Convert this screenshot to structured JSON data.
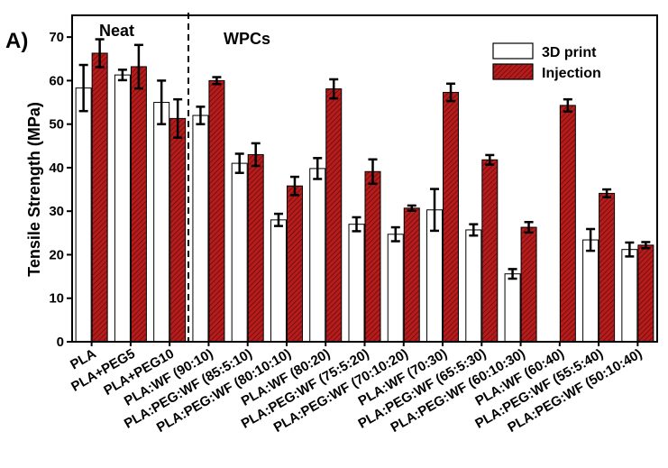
{
  "chart_data": {
    "type": "bar",
    "panel_label": "A)",
    "ylabel": "Tensile Strength (MPa)",
    "xlabel": "",
    "ylim": [
      0,
      75
    ],
    "yticks": [
      0,
      10,
      20,
      30,
      40,
      50,
      60,
      70
    ],
    "group_annotations": [
      "Neat",
      "WPCs"
    ],
    "categories": [
      "PLA",
      "PLA+PEG5",
      "PLA+PEG10",
      "PLA:WF (90:10)",
      "PLA:PEG:WF (85:5:10)",
      "PLA:PEG:WF (80:10:10)",
      "PLA:WF (80:20)",
      "PLA:PEG:WF (75:5:20)",
      "PLA:PEG:WF (70:10:20)",
      "PLA:WF (70:30)",
      "PLA:PEG:WF (65:5:30)",
      "PLA:PEG:WF (60:10:30)",
      "PLA:WF (60:40)",
      "PLA:PEG:WF (55:5:40)",
      "PLA:PEG:WF (50:10:40)"
    ],
    "series": [
      {
        "name": "3D print",
        "color": "#ffffff",
        "values": [
          58.3,
          61.3,
          55.0,
          52.0,
          41.0,
          28.0,
          39.8,
          27.0,
          24.7,
          30.3,
          25.7,
          15.6,
          null,
          23.4,
          21.2
        ],
        "errors": [
          5.3,
          1.2,
          5.0,
          2.0,
          2.2,
          1.4,
          2.4,
          1.6,
          1.6,
          4.8,
          1.3,
          1.1,
          null,
          2.5,
          1.6
        ]
      },
      {
        "name": "Injection",
        "color": "#b71c1c",
        "values": [
          66.3,
          63.2,
          51.3,
          60.0,
          43.0,
          35.8,
          58.1,
          39.1,
          30.7,
          57.3,
          41.8,
          26.3,
          54.3,
          34.1,
          22.2
        ]
      }
    ],
    "injection_errors": [
      3.2,
      5.0,
      4.4,
      0.8,
      2.6,
      2.1,
      2.2,
      2.8,
      0.6,
      2.0,
      1.1,
      1.2,
      1.4,
      0.9,
      0.7
    ],
    "legend": {
      "position": "top-right",
      "entries": [
        "3D print",
        "Injection"
      ]
    },
    "grid": false
  }
}
